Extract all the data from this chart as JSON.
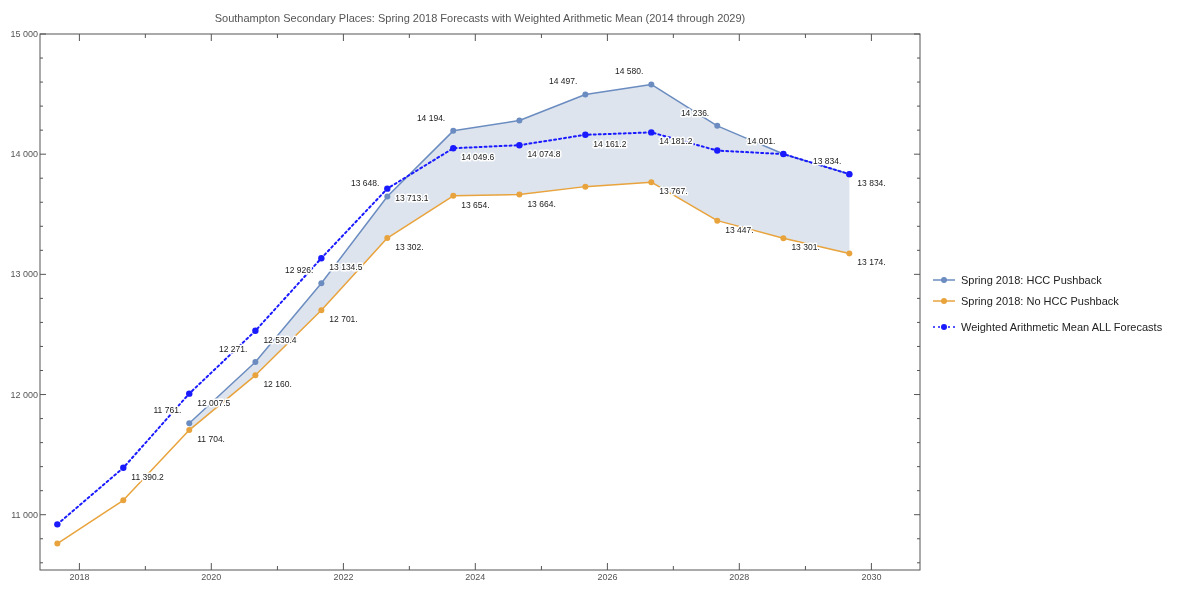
{
  "chart_data": {
    "type": "line",
    "title": "Southampton Secondary Places: Spring 2018 Forecasts with Weighted Arithmetic Mean (2014 through 2029)",
    "x": [
      "2017-09",
      "2018-09",
      "2019-09",
      "2020-09",
      "2021-09",
      "2022-09",
      "2023-09",
      "2024-09",
      "2025-09",
      "2026-09",
      "2027-09",
      "2028-09",
      "2029-09"
    ],
    "xlim": [
      "2017-05-28",
      "2030-09-27"
    ],
    "xticks": [
      {
        "value": "2018",
        "label": "2018"
      },
      {
        "value": "2019",
        "label": null
      },
      {
        "value": "2020",
        "label": "2020"
      },
      {
        "value": "2021",
        "label": null
      },
      {
        "value": "2022",
        "label": "2022"
      },
      {
        "value": "2023",
        "label": null
      },
      {
        "value": "2024",
        "label": "2024"
      },
      {
        "value": "2025",
        "label": null
      },
      {
        "value": "2026",
        "label": "2026"
      },
      {
        "value": "2027",
        "label": null
      },
      {
        "value": "2028",
        "label": "2028"
      },
      {
        "value": "2029",
        "label": null
      },
      {
        "value": "2030",
        "label": "2030"
      }
    ],
    "ylim": [
      10540,
      15000
    ],
    "yticks": [
      {
        "value": 11000,
        "label": "11 000"
      },
      {
        "value": 12000,
        "label": "12 000"
      },
      {
        "value": 13000,
        "label": "13 000"
      },
      {
        "value": 14000,
        "label": "14 000"
      },
      {
        "value": 15000,
        "label": "15 000"
      }
    ],
    "series": [
      {
        "name": "Spring 2018: HCC Pushback",
        "color": "#6b8cc0",
        "values": [
          null,
          null,
          11761,
          12271,
          12926,
          13648,
          14194,
          14280,
          14497,
          14580,
          14236,
          14001,
          13834
        ],
        "lower": [
          null,
          null,
          11704,
          12160,
          12701,
          13302,
          13654,
          13664,
          13730,
          13767,
          13447,
          13301,
          13174
        ],
        "upper": [
          null,
          null,
          11761,
          12271,
          12926,
          13648,
          14194,
          14280,
          14497,
          14580,
          14236,
          14001,
          13834
        ],
        "value_labels": [
          null,
          null,
          "11 761.",
          "12 271.",
          "12 926.",
          "13 648.",
          "14 194.",
          null,
          "14 497.",
          "14 580.",
          "14 236.",
          "14 001.",
          "13 834."
        ]
      },
      {
        "name": "Spring 2018: No HCC Pushback",
        "color": "#e8a33c",
        "values": [
          10760,
          11120,
          11704,
          12160,
          12701,
          13302,
          13654,
          13664,
          13730,
          13767,
          13447,
          13301,
          13174
        ],
        "value_labels": [
          null,
          null,
          "11 704.",
          "12 160.",
          "12 701.",
          "13 302.",
          "13 654.",
          "13 664.",
          null,
          "13 767.",
          "13 447.",
          "13 301.",
          "13 174."
        ]
      },
      {
        "name": "Weighted Arithmetic Mean ALL Forecasts",
        "color": "#1a1aff",
        "line_style": "dotted",
        "values": [
          10920,
          11390.2,
          12007.5,
          12530.4,
          13134.5,
          13713.1,
          14049.6,
          14074.8,
          14161.2,
          14181.2,
          14030,
          14001,
          13834
        ],
        "value_labels": [
          null,
          "11 390.2",
          "12 007.5",
          "12 530.4",
          "13 134.5",
          "13 713.1",
          "14 049.6",
          "14 074.8",
          "14 161.2",
          "14 181.2",
          null,
          null,
          "13 834."
        ]
      }
    ],
    "marker": "circle",
    "line_style": "solid",
    "legend": "right",
    "grid": false
  }
}
